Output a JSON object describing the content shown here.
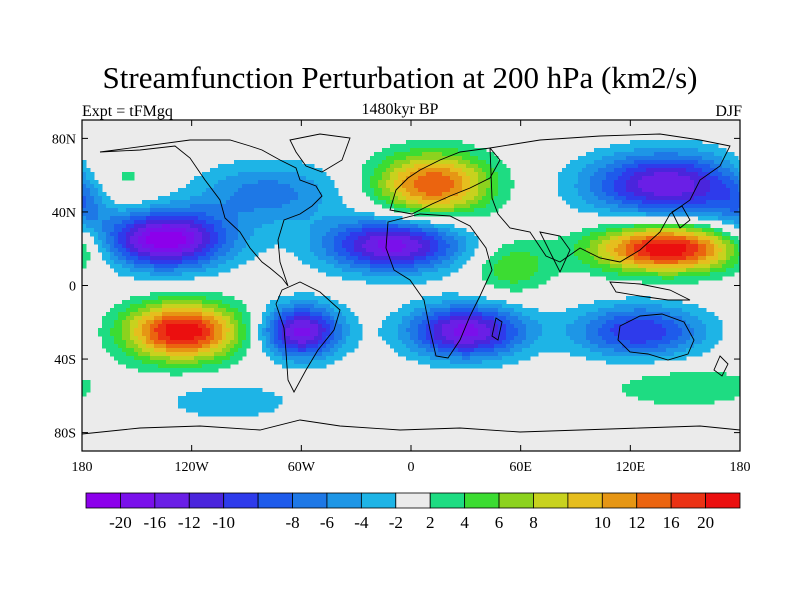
{
  "title": "Streamfunction Perturbation at 200 hPa (km2/s)",
  "subtitle_left": "Expt = tFMgq",
  "subtitle_center": "1480kyr BP",
  "subtitle_right": "DJF",
  "map": {
    "lon_range": [
      -180,
      180
    ],
    "lat_range": [
      -90,
      90
    ],
    "x_ticks": [
      {
        "lon": -180,
        "label": "180"
      },
      {
        "lon": -120,
        "label": "120W"
      },
      {
        "lon": -60,
        "label": "60W"
      },
      {
        "lon": 0,
        "label": "0"
      },
      {
        "lon": 60,
        "label": "60E"
      },
      {
        "lon": 120,
        "label": "120E"
      },
      {
        "lon": 180,
        "label": "180"
      }
    ],
    "y_ticks": [
      {
        "lat": 80,
        "label": "80N"
      },
      {
        "lat": 40,
        "label": "40N"
      },
      {
        "lat": 0,
        "label": "0"
      },
      {
        "lat": -40,
        "label": "40S"
      },
      {
        "lat": -80,
        "label": "80S"
      }
    ],
    "features": [
      {
        "lon": -135,
        "lat": 25,
        "amp": -20,
        "slon": 24,
        "slat": 11
      },
      {
        "lon": -125,
        "lat": -25,
        "amp": 20,
        "slon": 22,
        "slat": 11
      },
      {
        "lon": -78,
        "lat": 50,
        "amp": -7,
        "slon": 28,
        "slat": 12
      },
      {
        "lon": -60,
        "lat": -25,
        "amp": -17,
        "slon": 15,
        "slat": 10
      },
      {
        "lon": -10,
        "lat": 22,
        "amp": -17,
        "slon": 26,
        "slat": 10
      },
      {
        "lon": 12,
        "lat": 55,
        "amp": 16,
        "slon": 22,
        "slat": 12
      },
      {
        "lon": 30,
        "lat": -25,
        "amp": -17,
        "slon": 22,
        "slat": 10
      },
      {
        "lon": 140,
        "lat": 55,
        "amp": -16,
        "slon": 30,
        "slat": 12
      },
      {
        "lon": 140,
        "lat": 20,
        "amp": 20,
        "slon": 28,
        "slat": 9
      },
      {
        "lon": 125,
        "lat": -25,
        "amp": -12,
        "slon": 25,
        "slat": 10
      },
      {
        "lon": -165,
        "lat": 55,
        "amp": 5,
        "slon": 18,
        "slat": 12
      },
      {
        "lon": -180,
        "lat": 45,
        "amp": -6,
        "slon": 12,
        "slat": 10
      },
      {
        "lon": 150,
        "lat": -55,
        "amp": 4,
        "slon": 30,
        "slat": 8
      },
      {
        "lon": 55,
        "lat": 10,
        "amp": 6,
        "slon": 15,
        "slat": 10
      },
      {
        "lon": -100,
        "lat": -63,
        "amp": -4,
        "slon": 25,
        "slat": 7
      }
    ],
    "contour_levels": [
      -20,
      -18,
      -16,
      -14,
      -12,
      -10,
      -8,
      -6,
      -4,
      -2,
      2,
      4,
      6,
      8,
      10,
      12,
      14,
      16,
      18,
      20
    ]
  },
  "colorbar": {
    "colors": [
      "#8C00EB",
      "#7A10EB",
      "#6A1FE6",
      "#4A25DC",
      "#2E3BEB",
      "#1E5BEB",
      "#1E78E6",
      "#1E96E6",
      "#1EB4E6",
      "#ebebeb",
      "#1EDC82",
      "#3CDC32",
      "#8CD21E",
      "#C8D21E",
      "#E6BE1E",
      "#E69614",
      "#EB640F",
      "#EB3214",
      "#EB0F0F"
    ],
    "labels": [
      "-20",
      "-16",
      "-12",
      "-10",
      "-8",
      "-6",
      "-4",
      "-2",
      "2",
      "4",
      "6",
      "8",
      "10",
      "12",
      "16",
      "20"
    ]
  }
}
